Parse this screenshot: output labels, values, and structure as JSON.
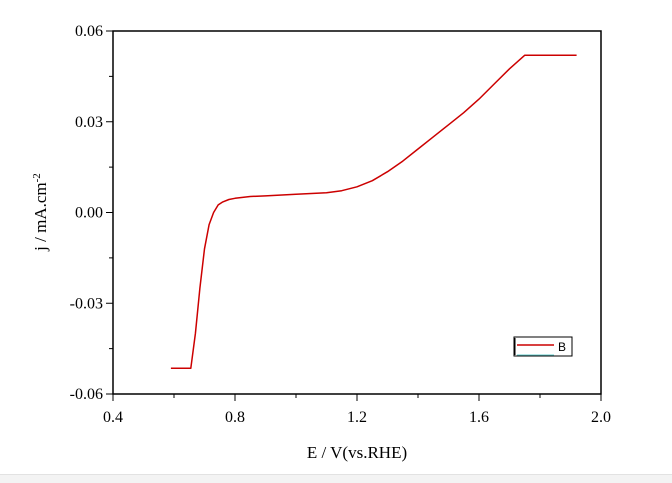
{
  "chart_data": {
    "type": "line",
    "xlabel": "E / V(vs.RHE)",
    "ylabel_main": "j / mA.cm",
    "ylabel_sup": "-2",
    "xlim": [
      0.4,
      2.0
    ],
    "ylim": [
      -0.06,
      0.06
    ],
    "x_ticks": [
      0.4,
      0.8,
      1.2,
      1.6,
      2.0
    ],
    "x_tick_labels": [
      "0.4",
      "0.8",
      "1.2",
      "1.6",
      "2.0"
    ],
    "y_ticks": [
      -0.06,
      -0.03,
      0.0,
      0.03,
      0.06
    ],
    "y_tick_labels": [
      "-0.06",
      "-0.03",
      "0.00",
      "0.03",
      "0.06"
    ],
    "grid": false,
    "legend_position": "bottom-right",
    "series": [
      {
        "name": "B",
        "color": "#cc0000",
        "x": [
          0.59,
          0.655,
          0.67,
          0.685,
          0.7,
          0.715,
          0.73,
          0.745,
          0.76,
          0.78,
          0.8,
          0.85,
          0.9,
          1.0,
          1.1,
          1.15,
          1.2,
          1.25,
          1.3,
          1.35,
          1.4,
          1.45,
          1.5,
          1.55,
          1.6,
          1.65,
          1.7,
          1.75,
          1.92
        ],
        "y": [
          -0.0515,
          -0.0515,
          -0.04,
          -0.025,
          -0.012,
          -0.004,
          0.0,
          0.0025,
          0.0035,
          0.0043,
          0.0047,
          0.0053,
          0.0055,
          0.006,
          0.0065,
          0.0072,
          0.0085,
          0.0105,
          0.0135,
          0.017,
          0.021,
          0.025,
          0.029,
          0.033,
          0.0375,
          0.0425,
          0.0475,
          0.052,
          0.052
        ]
      }
    ]
  }
}
